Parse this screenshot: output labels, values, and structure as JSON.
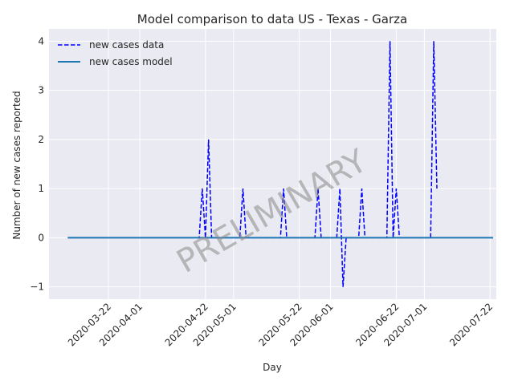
{
  "chart_data": {
    "type": "line",
    "title": "Model comparison to data US - Texas - Garza",
    "xlabel": "Day",
    "ylabel": "Number of new cases reported",
    "watermark": "PRELIMINARY",
    "xlim": [
      "2020-03-03",
      "2020-07-24"
    ],
    "ylim": [
      -1.25,
      4.25
    ],
    "x_ticks": [
      "2020-03-22",
      "2020-04-01",
      "2020-04-22",
      "2020-05-01",
      "2020-05-22",
      "2020-06-01",
      "2020-06-22",
      "2020-07-01",
      "2020-07-22"
    ],
    "y_ticks": [
      -1,
      0,
      1,
      2,
      3,
      4
    ],
    "grid": true,
    "legend_position": "upper-left",
    "colors": {
      "background": "#eaeaf2",
      "grid": "#ffffff",
      "data": "#0000ff",
      "model": "#1f77b4"
    },
    "series": [
      {
        "name": "new cases data",
        "style": "dashed",
        "color": "#0000ff",
        "points": [
          [
            "2020-03-09",
            0
          ],
          [
            "2020-04-20",
            0
          ],
          [
            "2020-04-21",
            1
          ],
          [
            "2020-04-22",
            0
          ],
          [
            "2020-04-23",
            2
          ],
          [
            "2020-04-24",
            0
          ],
          [
            "2020-05-03",
            0
          ],
          [
            "2020-05-04",
            1
          ],
          [
            "2020-05-05",
            0
          ],
          [
            "2020-05-16",
            0
          ],
          [
            "2020-05-17",
            1
          ],
          [
            "2020-05-18",
            0
          ],
          [
            "2020-05-27",
            0
          ],
          [
            "2020-05-28",
            1
          ],
          [
            "2020-05-29",
            0
          ],
          [
            "2020-06-03",
            0
          ],
          [
            "2020-06-04",
            1
          ],
          [
            "2020-06-05",
            -1
          ],
          [
            "2020-06-06",
            0
          ],
          [
            "2020-06-10",
            0
          ],
          [
            "2020-06-11",
            1
          ],
          [
            "2020-06-12",
            0
          ],
          [
            "2020-06-19",
            0
          ],
          [
            "2020-06-20",
            4
          ],
          [
            "2020-06-21",
            0
          ],
          [
            "2020-06-22",
            1
          ],
          [
            "2020-06-23",
            0
          ],
          [
            "2020-07-03",
            0
          ],
          [
            "2020-07-04",
            4
          ],
          [
            "2020-07-05",
            1
          ]
        ]
      },
      {
        "name": "new cases model",
        "style": "solid",
        "color": "#1f77b4",
        "points": [
          [
            "2020-03-09",
            0
          ],
          [
            "2020-07-23",
            0
          ]
        ]
      }
    ]
  }
}
